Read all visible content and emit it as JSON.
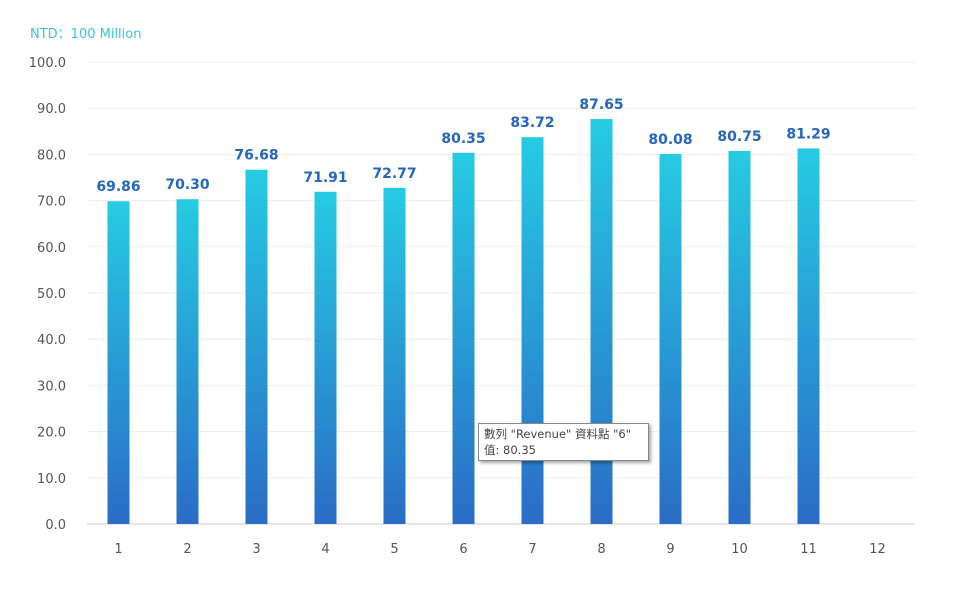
{
  "chart_data": {
    "type": "bar",
    "title": "",
    "unit_label": "NTD：100 Million",
    "xlabel": "",
    "ylabel": "",
    "categories": [
      "1",
      "2",
      "3",
      "4",
      "5",
      "6",
      "7",
      "8",
      "9",
      "10",
      "11",
      "12"
    ],
    "series": [
      {
        "name": "Revenue",
        "values": [
          69.86,
          70.3,
          76.68,
          71.91,
          72.77,
          80.35,
          83.72,
          87.65,
          80.08,
          80.75,
          81.29,
          null
        ]
      }
    ],
    "ylim": [
      0,
      100
    ],
    "yticks": [
      "0.0",
      "10.0",
      "20.0",
      "30.0",
      "40.0",
      "50.0",
      "60.0",
      "70.0",
      "80.0",
      "90.0",
      "100.0"
    ],
    "grid": true,
    "legend": "none",
    "colors": {
      "bar_top": "#26cbe3",
      "bar_bottom": "#2a6cc6",
      "label": "#2566c0",
      "unit": "#3cc3dd"
    }
  },
  "tooltip": {
    "line1": "數列 \"Revenue\" 資料點 \"6\"",
    "line2": "值: 80.35"
  }
}
